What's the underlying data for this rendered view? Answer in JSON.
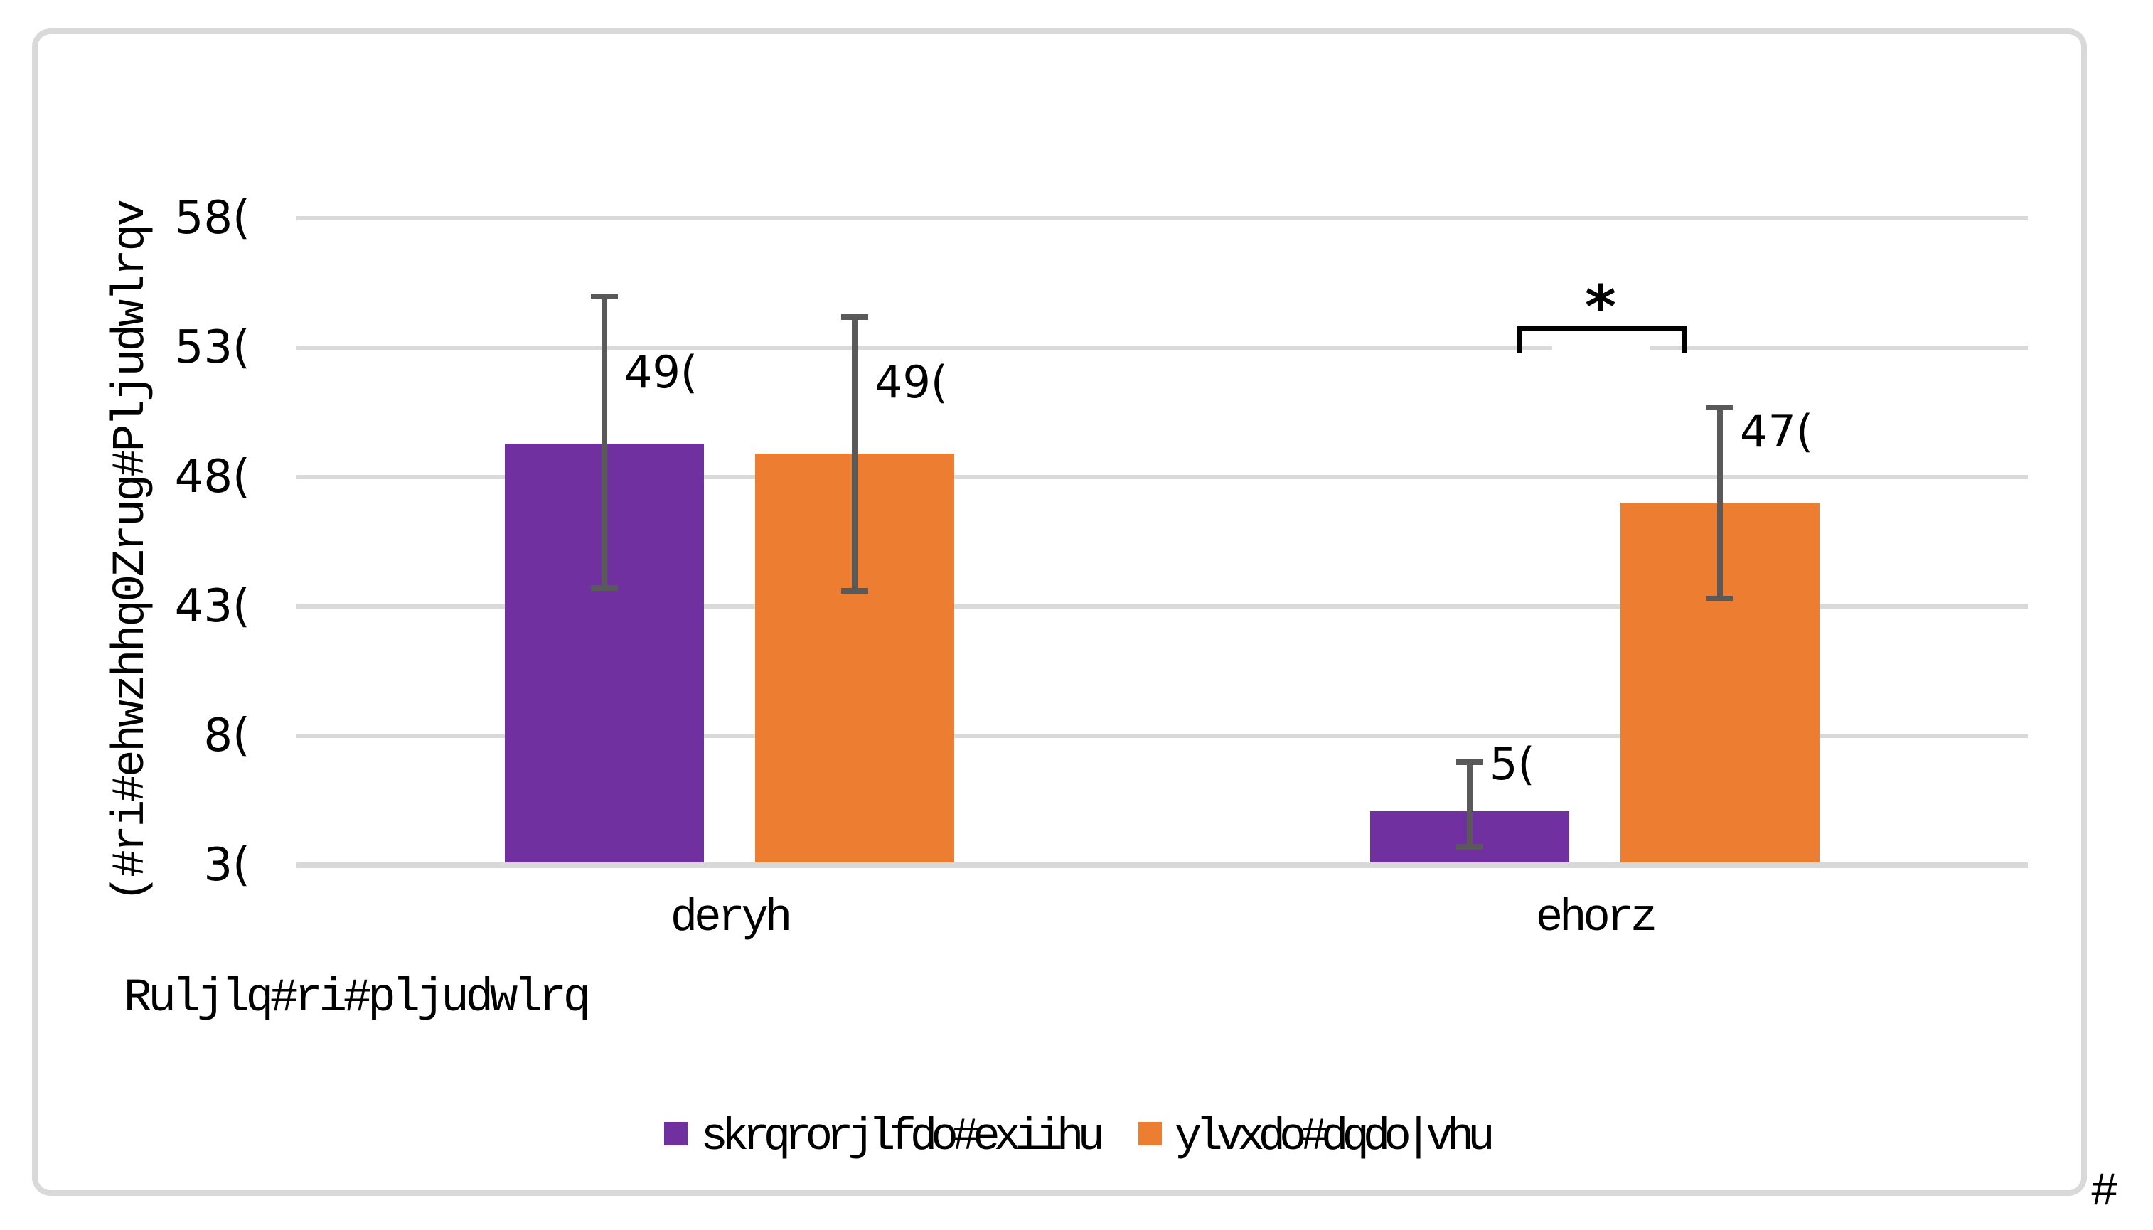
{
  "chart_data": {
    "type": "bar",
    "title": "",
    "x_axis_title": "Ruljlq#ri#pljudwlrq",
    "y_axis_title": "(#ri#ehwzhhq0Zrug#Pljudwlrqv",
    "categories": [
      "deryh",
      "ehorz"
    ],
    "series": [
      {
        "name": "skrqrorjlfdo#exiihu",
        "color": "#7030A0",
        "values": [
          16.3,
          2.1
        ],
        "data_labels": [
          "49(",
          "5("
        ],
        "error_high": [
          22.1,
          4.1
        ],
        "error_low": [
          10.6,
          0.6
        ]
      },
      {
        "name": "ylvxdo#dqdo|vhu",
        "color": "#ED7D31",
        "values": [
          15.9,
          14.0
        ],
        "data_labels": [
          "49(",
          "47("
        ],
        "error_high": [
          21.3,
          17.8
        ],
        "error_low": [
          10.5,
          10.2
        ]
      }
    ],
    "y_ticks": [
      {
        "label": "3(",
        "value": 0
      },
      {
        "label": "8(",
        "value": 5
      },
      {
        "label": "43(",
        "value": 10
      },
      {
        "label": "48(",
        "value": 15
      },
      {
        "label": "53(",
        "value": 20
      },
      {
        "label": "58(",
        "value": 25
      }
    ],
    "ylim": [
      0,
      25
    ],
    "grid": true,
    "legend_position": "bottom",
    "annotations": [
      {
        "type": "significance-bracket",
        "label": "*",
        "category": "ehorz"
      }
    ]
  },
  "legend": {
    "items": [
      {
        "label": "skrqrorjlfdo#exiihu",
        "color": "#7030A0"
      },
      {
        "label": "ylvxdo#dqdo|vhu",
        "color": "#ED7D31"
      }
    ]
  },
  "annotations": {
    "significance_star": "*",
    "stray_character": "#"
  },
  "colors": {
    "purple_series": "#7030A0",
    "orange_series": "#ED7D31",
    "gridline": "#D9D9D9",
    "error_bar": "#595959",
    "chart_border": "#D9D9D9",
    "bracket": "#000000",
    "text": "#000000",
    "background": "#FFFFFF"
  }
}
